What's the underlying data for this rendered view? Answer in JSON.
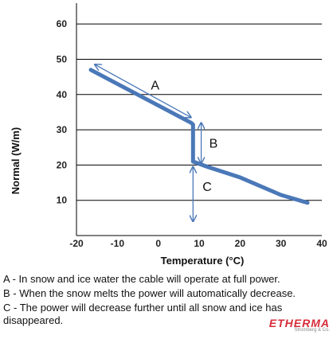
{
  "chart_data": {
    "type": "line",
    "title": "",
    "xlabel": "Temperature (°C)",
    "ylabel": "Normal (W/m)",
    "xlim": [
      -20,
      40
    ],
    "ylim": [
      0,
      65
    ],
    "xticks": [
      "-20",
      "-10",
      "0",
      "10",
      "20",
      "30",
      "40"
    ],
    "yticks": [
      "10",
      "20",
      "30",
      "40",
      "50",
      "60"
    ],
    "grid": "horizontal",
    "series": [
      {
        "points": [
          [
            -16.5,
            47
          ],
          [
            8,
            32
          ],
          [
            8.5,
            31.5
          ],
          [
            8.5,
            21
          ],
          [
            12,
            19.5
          ],
          [
            20,
            16.5
          ],
          [
            30,
            11.5
          ],
          [
            36.5,
            9.3
          ]
        ]
      }
    ],
    "annotations": [
      {
        "label": "A",
        "arrow_from": [
          -15.5,
          48.5
        ],
        "arrow_to": [
          8,
          33.5
        ]
      },
      {
        "label": "B",
        "arrow_from": [
          10.5,
          32
        ],
        "arrow_to": [
          10.5,
          20.5
        ]
      },
      {
        "label": "C",
        "arrow_from": [
          8.5,
          19.5
        ],
        "arrow_to": [
          8.5,
          4
        ]
      }
    ],
    "line_color": "#4a78b8",
    "arrow_color": "#4a78b8"
  },
  "notes": [
    "A - In snow and ice water the cable will operate at full power.",
    "B - When the snow melts the power will automatically decrease.",
    "C - The power will decrease further until all snow and ice has disappeared."
  ],
  "logo": {
    "main": "ETHERMA",
    "sub": "Stromberg & Co."
  }
}
